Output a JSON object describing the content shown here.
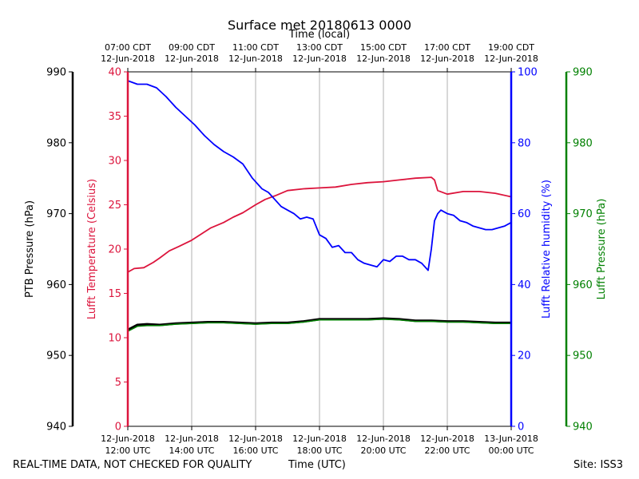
{
  "chart_data": {
    "type": "line",
    "title": "Surface met 20180613 0000",
    "top_axis_label": "Time (local)",
    "xlabel": "Time (UTC)",
    "footer_left": "REAL-TIME DATA, NOT CHECKED FOR QUALITY",
    "footer_right": "Site: ISS3",
    "x_range_hours_utc": [
      12,
      24
    ],
    "grid": "vertical",
    "bottom_ticks": [
      {
        "x": 12,
        "line1": "12-Jun-2018",
        "line2": "12:00 UTC"
      },
      {
        "x": 14,
        "line1": "12-Jun-2018",
        "line2": "14:00 UTC"
      },
      {
        "x": 16,
        "line1": "12-Jun-2018",
        "line2": "16:00 UTC"
      },
      {
        "x": 18,
        "line1": "12-Jun-2018",
        "line2": "18:00 UTC"
      },
      {
        "x": 20,
        "line1": "12-Jun-2018",
        "line2": "20:00 UTC"
      },
      {
        "x": 22,
        "line1": "12-Jun-2018",
        "line2": "22:00 UTC"
      },
      {
        "x": 24,
        "line1": "13-Jun-2018",
        "line2": "00:00 UTC"
      }
    ],
    "top_ticks": [
      {
        "x": 12,
        "line1": "07:00 CDT",
        "line2": "12-Jun-2018"
      },
      {
        "x": 14,
        "line1": "09:00 CDT",
        "line2": "12-Jun-2018"
      },
      {
        "x": 16,
        "line1": "11:00 CDT",
        "line2": "12-Jun-2018"
      },
      {
        "x": 18,
        "line1": "13:00 CDT",
        "line2": "12-Jun-2018"
      },
      {
        "x": 20,
        "line1": "15:00 CDT",
        "line2": "12-Jun-2018"
      },
      {
        "x": 22,
        "line1": "17:00 CDT",
        "line2": "12-Jun-2018"
      },
      {
        "x": 24,
        "line1": "19:00 CDT",
        "line2": "12-Jun-2018"
      }
    ],
    "axes": [
      {
        "id": "ptb",
        "label": "PTB Pressure (hPa)",
        "ylim": [
          940,
          990
        ],
        "ticks": [
          940,
          950,
          960,
          970,
          980,
          990
        ],
        "color": "#000000"
      },
      {
        "id": "temp",
        "label": "Lufft Temperature (Celsius)",
        "ylim": [
          0,
          40
        ],
        "ticks": [
          0,
          5,
          10,
          15,
          20,
          25,
          30,
          35,
          40
        ],
        "color": "#dc143c"
      },
      {
        "id": "rh",
        "label": "Lufft Relative humidity (%)",
        "ylim": [
          0,
          100
        ],
        "ticks": [
          0,
          20,
          40,
          60,
          80,
          100
        ],
        "color": "#0000ff"
      },
      {
        "id": "lufft_p",
        "label": "Lufft Pressure (hPa)",
        "ylim": [
          940,
          990
        ],
        "ticks": [
          940,
          950,
          960,
          970,
          980,
          990
        ],
        "color": "#008000"
      }
    ],
    "series": [
      {
        "axis": "temp",
        "color": "#dc143c",
        "x": [
          12.0,
          12.2,
          12.5,
          12.8,
          13.0,
          13.3,
          13.6,
          14.0,
          14.3,
          14.6,
          15.0,
          15.3,
          15.6,
          16.0,
          16.3,
          16.6,
          17.0,
          17.5,
          18.0,
          18.5,
          19.0,
          19.5,
          20.0,
          20.5,
          21.0,
          21.5,
          21.6,
          21.7,
          22.0,
          22.5,
          23.0,
          23.5,
          24.0
        ],
        "y": [
          17.4,
          17.8,
          17.9,
          18.5,
          19.0,
          19.8,
          20.3,
          21.0,
          21.7,
          22.4,
          23.0,
          23.6,
          24.1,
          25.0,
          25.6,
          26.0,
          26.6,
          26.8,
          26.9,
          27.0,
          27.3,
          27.5,
          27.6,
          27.8,
          28.0,
          28.1,
          27.8,
          26.6,
          26.2,
          26.5,
          26.5,
          26.3,
          25.9
        ]
      },
      {
        "axis": "rh",
        "color": "#0000ff",
        "x": [
          12.0,
          12.3,
          12.6,
          12.9,
          13.2,
          13.5,
          13.8,
          14.1,
          14.4,
          14.7,
          15.0,
          15.3,
          15.6,
          15.9,
          16.2,
          16.4,
          16.6,
          16.8,
          17.0,
          17.2,
          17.4,
          17.6,
          17.8,
          18.0,
          18.2,
          18.4,
          18.6,
          18.8,
          19.0,
          19.2,
          19.4,
          19.6,
          19.8,
          20.0,
          20.2,
          20.4,
          20.6,
          20.8,
          21.0,
          21.2,
          21.4,
          21.5,
          21.6,
          21.7,
          21.8,
          22.0,
          22.2,
          22.4,
          22.6,
          22.8,
          23.0,
          23.2,
          23.4,
          23.6,
          23.8,
          24.0
        ],
        "y": [
          97.5,
          96.5,
          96.5,
          95.5,
          93,
          90,
          87.5,
          85,
          82,
          79.5,
          77.5,
          76,
          74,
          70,
          67,
          66,
          64,
          62,
          61,
          60,
          58.5,
          59,
          58.5,
          54,
          53,
          50.5,
          51,
          49,
          49,
          47,
          46,
          45.5,
          45,
          47,
          46.5,
          48,
          48,
          47,
          47,
          46,
          44,
          50,
          58,
          60,
          61,
          60,
          59.5,
          58,
          57.5,
          56.5,
          56,
          55.5,
          55.5,
          56,
          56.5,
          57.5
        ]
      },
      {
        "axis": "ptb",
        "color": "#000000",
        "x": [
          12.0,
          12.3,
          12.6,
          13.0,
          13.5,
          14.0,
          14.5,
          15.0,
          15.5,
          16.0,
          16.5,
          17.0,
          17.5,
          18.0,
          18.5,
          19.0,
          19.5,
          20.0,
          20.5,
          21.0,
          21.5,
          22.0,
          22.5,
          23.0,
          23.5,
          24.0
        ],
        "y": [
          953.6,
          954.3,
          954.4,
          954.3,
          954.5,
          954.6,
          954.7,
          954.7,
          954.6,
          954.5,
          954.6,
          954.6,
          954.8,
          955.1,
          955.1,
          955.1,
          955.1,
          955.2,
          955.1,
          954.9,
          954.9,
          954.8,
          954.8,
          954.7,
          954.6,
          954.6
        ]
      },
      {
        "axis": "lufft_p",
        "color": "#008000",
        "x": [
          12.0,
          12.3,
          12.6,
          13.0,
          13.5,
          14.0,
          14.5,
          15.0,
          15.5,
          16.0,
          16.5,
          17.0,
          17.5,
          18.0,
          18.5,
          19.0,
          19.5,
          20.0,
          20.5,
          21.0,
          21.5,
          22.0,
          22.5,
          23.0,
          23.5,
          24.0
        ],
        "y": [
          953.4,
          954.1,
          954.2,
          954.2,
          954.4,
          954.5,
          954.6,
          954.6,
          954.5,
          954.4,
          954.5,
          954.5,
          954.7,
          955.0,
          955.0,
          955.0,
          955.0,
          955.1,
          955.0,
          954.8,
          954.8,
          954.7,
          954.7,
          954.6,
          954.5,
          954.5
        ]
      }
    ]
  }
}
